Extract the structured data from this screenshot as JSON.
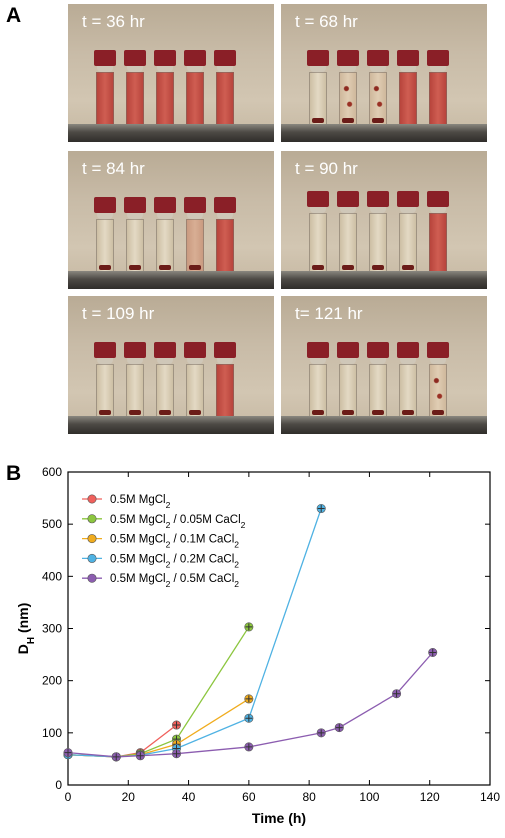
{
  "panel_a": {
    "label": "A",
    "photos": [
      {
        "title": "t = 36 hr",
        "vials": [
          "red",
          "red",
          "red",
          "red",
          "red"
        ]
      },
      {
        "title": "t = 68 hr",
        "vials": [
          "clear",
          "flocs",
          "flocs",
          "red",
          "red"
        ]
      },
      {
        "title": "t = 84 hr",
        "vials": [
          "clear",
          "clear",
          "clear",
          "pale",
          "red"
        ]
      },
      {
        "title": "t = 90 hr",
        "vials": [
          "clear",
          "clear",
          "clear",
          "clear",
          "red"
        ]
      },
      {
        "title": "t = 109 hr",
        "vials": [
          "clear",
          "clear",
          "clear",
          "clear",
          "red"
        ]
      },
      {
        "title": "t= 121 hr",
        "vials": [
          "clear",
          "clear",
          "clear",
          "clear",
          "flocs"
        ]
      }
    ]
  },
  "panel_b": {
    "label": "B"
  },
  "chart_data": {
    "type": "line",
    "xlabel": "Time (h)",
    "ylabel": "D_H (nm)",
    "xlim": [
      0,
      140
    ],
    "ylim": [
      0,
      600
    ],
    "xticks": [
      0,
      20,
      40,
      60,
      80,
      100,
      120,
      140
    ],
    "yticks": [
      0,
      100,
      200,
      300,
      400,
      500,
      600
    ],
    "grid": false,
    "legend_position": "top-left",
    "series": [
      {
        "name": "0.5M MgCl2",
        "legend": {
          "base": "0.5M MgCl",
          "sub": "2",
          "rest": ""
        },
        "color": "#f0605c",
        "x": [
          0,
          16,
          24,
          36
        ],
        "y": [
          58,
          54,
          62,
          115
        ]
      },
      {
        "name": "0.5M MgCl2 / 0.05M CaCl2",
        "legend": {
          "base": "0.5M MgCl",
          "sub": "2",
          "rest": " / 0.05M CaCl",
          "sub2": "2"
        },
        "color": "#8cc63f",
        "x": [
          0,
          16,
          24,
          36,
          60
        ],
        "y": [
          58,
          54,
          60,
          88,
          303
        ]
      },
      {
        "name": "0.5M MgCl2 / 0.1M CaCl2",
        "legend": {
          "base": "0.5M MgCl",
          "sub": "2",
          "rest": " / 0.1M CaCl",
          "sub2": "2"
        },
        "color": "#f0ac1e",
        "x": [
          0,
          16,
          24,
          36,
          60
        ],
        "y": [
          58,
          54,
          58,
          78,
          165
        ]
      },
      {
        "name": "0.5M MgCl2 / 0.2M CaCl2",
        "legend": {
          "base": "0.5M MgCl",
          "sub": "2",
          "rest": " / 0.2M CaCl",
          "sub2": "2"
        },
        "color": "#4fb2e3",
        "x": [
          0,
          16,
          24,
          36,
          60,
          84
        ],
        "y": [
          58,
          54,
          57,
          70,
          128,
          530
        ]
      },
      {
        "name": "0.5M MgCl2 / 0.5M CaCl2",
        "legend": {
          "base": "0.5M MgCl",
          "sub": "2",
          "rest": " / 0.5M CaCl",
          "sub2": "2"
        },
        "color": "#8c5db0",
        "x": [
          0,
          16,
          24,
          36,
          60,
          84,
          90,
          109,
          121
        ],
        "y": [
          62,
          54,
          56,
          60,
          73,
          100,
          110,
          175,
          254
        ]
      }
    ]
  }
}
